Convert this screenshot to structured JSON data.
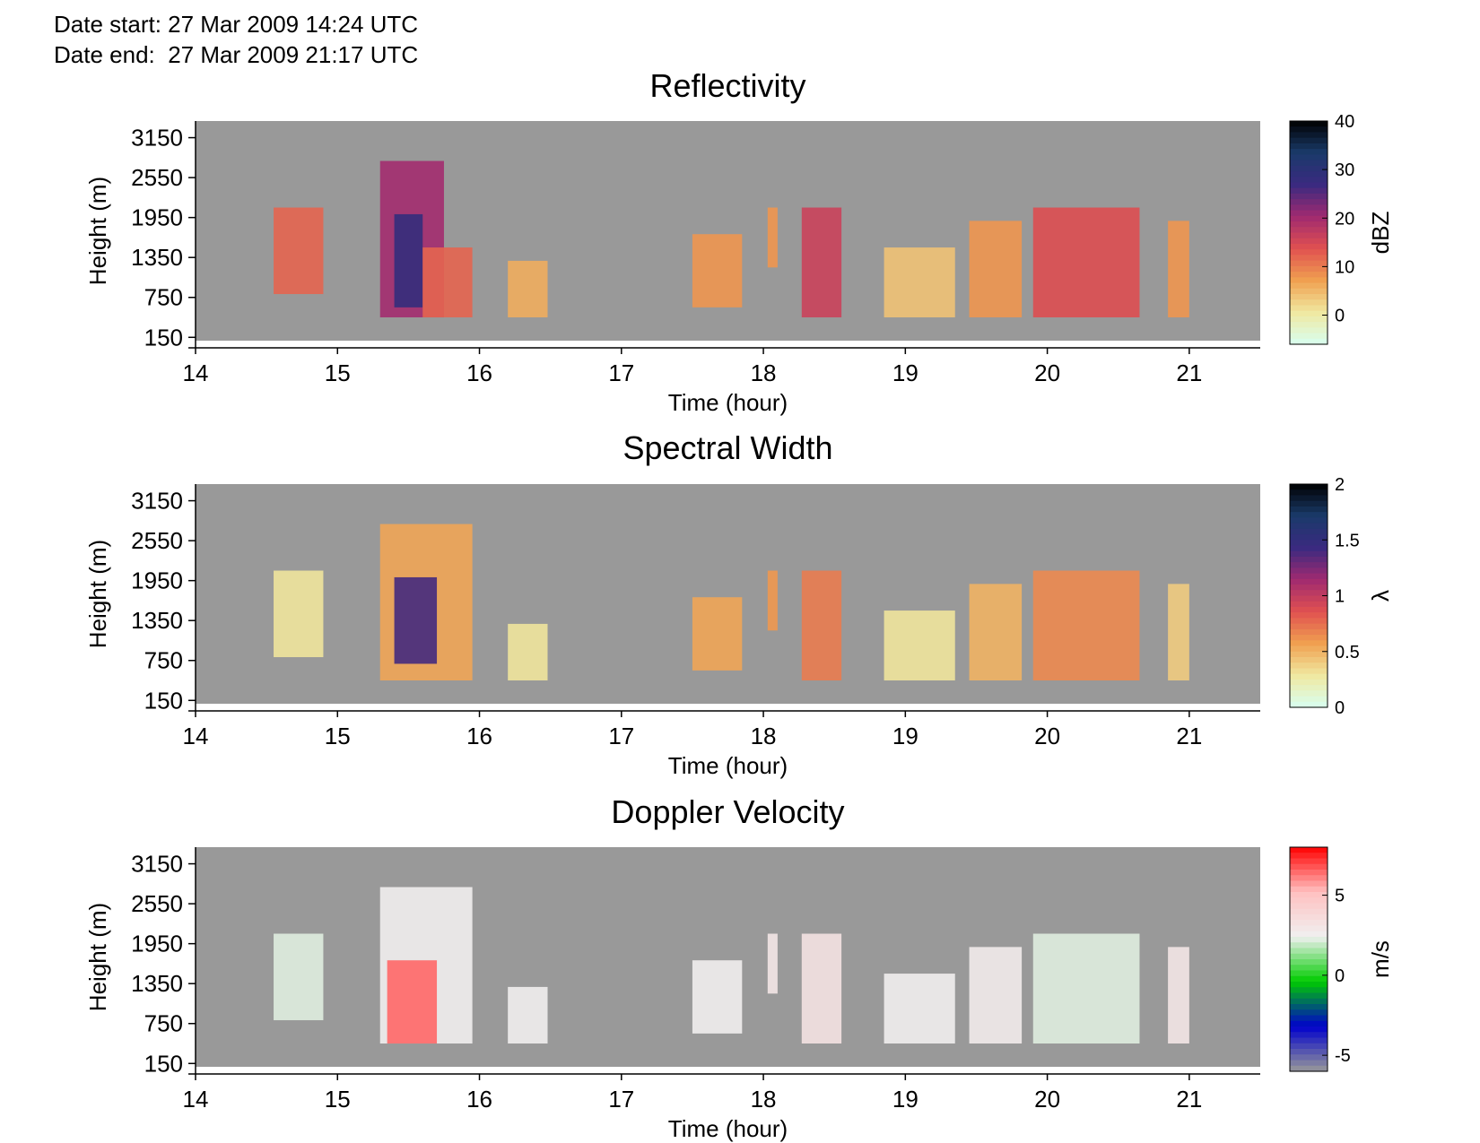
{
  "header": {
    "date_start": "Date start: 27 Mar 2009 14:24 UTC",
    "date_end": "Date end:  27 Mar 2009 21:17 UTC"
  },
  "chart_data": [
    {
      "type": "heatmap",
      "title": "Reflectivity",
      "xlabel": "Time (hour)",
      "ylabel": "Height (m)",
      "xlim": [
        14,
        21.5
      ],
      "ylim": [
        100,
        3400
      ],
      "xticks": [
        "14",
        "15",
        "16",
        "17",
        "18",
        "19",
        "20",
        "21"
      ],
      "yticks": [
        "150",
        "750",
        "1350",
        "1950",
        "2550",
        "3150"
      ],
      "background_color": "#999999",
      "colorbar": {
        "label": "dBZ",
        "range": [
          -6,
          40
        ],
        "ticks": [
          "40",
          "30",
          "20",
          "10",
          "0"
        ],
        "tick_values": [
          40,
          30,
          20,
          10,
          0
        ],
        "colors": [
          "#d8fff0",
          "#f0e8a0",
          "#f0a050",
          "#e05050",
          "#a02a70",
          "#3a2a80",
          "#1a3a6a",
          "#000000"
        ]
      },
      "cells": [
        {
          "t0": 14.55,
          "t1": 14.9,
          "z0": 800,
          "z1": 2100,
          "v": 12
        },
        {
          "t0": 15.3,
          "t1": 15.75,
          "z0": 450,
          "z1": 2800,
          "v": 20
        },
        {
          "t0": 15.4,
          "t1": 15.6,
          "z0": 600,
          "z1": 2000,
          "v": 28
        },
        {
          "t0": 15.6,
          "t1": 15.95,
          "z0": 450,
          "z1": 1500,
          "v": 12
        },
        {
          "t0": 16.2,
          "t1": 16.48,
          "z0": 450,
          "z1": 1300,
          "v": 6
        },
        {
          "t0": 17.5,
          "t1": 17.85,
          "z0": 600,
          "z1": 1700,
          "v": 8
        },
        {
          "t0": 18.03,
          "t1": 18.1,
          "z0": 1200,
          "z1": 2100,
          "v": 8
        },
        {
          "t0": 18.27,
          "t1": 18.55,
          "z0": 450,
          "z1": 2100,
          "v": 16
        },
        {
          "t0": 18.85,
          "t1": 19.35,
          "z0": 450,
          "z1": 1500,
          "v": 4
        },
        {
          "t0": 19.45,
          "t1": 19.82,
          "z0": 450,
          "z1": 1900,
          "v": 8
        },
        {
          "t0": 19.9,
          "t1": 20.65,
          "z0": 450,
          "z1": 2100,
          "v": 14
        },
        {
          "t0": 20.85,
          "t1": 21.0,
          "z0": 450,
          "z1": 1900,
          "v": 8
        }
      ]
    },
    {
      "type": "heatmap",
      "title": "Spectral Width",
      "xlabel": "Time (hour)",
      "ylabel": "Height (m)",
      "xlim": [
        14,
        21.5
      ],
      "ylim": [
        100,
        3400
      ],
      "xticks": [
        "14",
        "15",
        "16",
        "17",
        "18",
        "19",
        "20",
        "21"
      ],
      "yticks": [
        "150",
        "750",
        "1350",
        "1950",
        "2550",
        "3150"
      ],
      "background_color": "#999999",
      "colorbar": {
        "label": "λ",
        "range": [
          0,
          2
        ],
        "ticks": [
          "2",
          "1.5",
          "1",
          "0.5",
          "0"
        ],
        "tick_values": [
          2,
          1.5,
          1,
          0.5,
          0
        ],
        "colors": [
          "#d8fff0",
          "#f0e8a0",
          "#f0a050",
          "#e05050",
          "#a02a70",
          "#3a2a80",
          "#1a3a6a",
          "#000000"
        ]
      },
      "cells": [
        {
          "t0": 14.55,
          "t1": 14.9,
          "z0": 800,
          "z1": 2100,
          "v": 0.3
        },
        {
          "t0": 15.3,
          "t1": 15.95,
          "z0": 450,
          "z1": 2800,
          "v": 0.55
        },
        {
          "t0": 15.4,
          "t1": 15.7,
          "z0": 700,
          "z1": 2000,
          "v": 1.4
        },
        {
          "t0": 16.2,
          "t1": 16.48,
          "z0": 450,
          "z1": 1300,
          "v": 0.3
        },
        {
          "t0": 17.5,
          "t1": 17.85,
          "z0": 600,
          "z1": 1700,
          "v": 0.55
        },
        {
          "t0": 18.03,
          "t1": 18.1,
          "z0": 1200,
          "z1": 2100,
          "v": 0.6
        },
        {
          "t0": 18.27,
          "t1": 18.55,
          "z0": 450,
          "z1": 2100,
          "v": 0.7
        },
        {
          "t0": 18.85,
          "t1": 19.35,
          "z0": 450,
          "z1": 1500,
          "v": 0.3
        },
        {
          "t0": 19.45,
          "t1": 19.82,
          "z0": 450,
          "z1": 1900,
          "v": 0.5
        },
        {
          "t0": 19.9,
          "t1": 20.65,
          "z0": 450,
          "z1": 2100,
          "v": 0.65
        },
        {
          "t0": 20.85,
          "t1": 21.0,
          "z0": 450,
          "z1": 1900,
          "v": 0.4
        }
      ]
    },
    {
      "type": "heatmap",
      "title": "Doppler Velocity",
      "xlabel": "Time (hour)",
      "ylabel": "Height (m)",
      "xlim": [
        14,
        21.5
      ],
      "ylim": [
        100,
        3400
      ],
      "xticks": [
        "14",
        "15",
        "16",
        "17",
        "18",
        "19",
        "20",
        "21"
      ],
      "yticks": [
        "150",
        "750",
        "1350",
        "1950",
        "2550",
        "3150"
      ],
      "background_color": "#999999",
      "colorbar": {
        "label": "m/s",
        "range": [
          -6,
          8
        ],
        "ticks": [
          "5",
          "0",
          "-5"
        ],
        "tick_values": [
          5,
          0,
          -5
        ],
        "colors": [
          "#999999",
          "#0000cc",
          "#00cc00",
          "#f0f0f0",
          "#ffc0c0",
          "#ff0000"
        ]
      },
      "cells": [
        {
          "t0": 14.55,
          "t1": 14.9,
          "z0": 800,
          "z1": 2100,
          "v": 2.2
        },
        {
          "t0": 15.3,
          "t1": 15.95,
          "z0": 450,
          "z1": 2800,
          "v": 2.5
        },
        {
          "t0": 15.35,
          "t1": 15.7,
          "z0": 450,
          "z1": 1700,
          "v": 6.5
        },
        {
          "t0": 16.2,
          "t1": 16.48,
          "z0": 450,
          "z1": 1300,
          "v": 2.5
        },
        {
          "t0": 17.5,
          "t1": 17.85,
          "z0": 600,
          "z1": 1700,
          "v": 2.5
        },
        {
          "t0": 18.03,
          "t1": 18.1,
          "z0": 1200,
          "z1": 2100,
          "v": 3
        },
        {
          "t0": 18.27,
          "t1": 18.55,
          "z0": 450,
          "z1": 2100,
          "v": 3.2
        },
        {
          "t0": 18.85,
          "t1": 19.35,
          "z0": 450,
          "z1": 1500,
          "v": 2.5
        },
        {
          "t0": 19.45,
          "t1": 19.82,
          "z0": 450,
          "z1": 1900,
          "v": 2.7
        },
        {
          "t0": 19.9,
          "t1": 20.65,
          "z0": 450,
          "z1": 2100,
          "v": 2.2
        },
        {
          "t0": 20.85,
          "t1": 21.0,
          "z0": 450,
          "z1": 1900,
          "v": 3
        }
      ]
    }
  ]
}
